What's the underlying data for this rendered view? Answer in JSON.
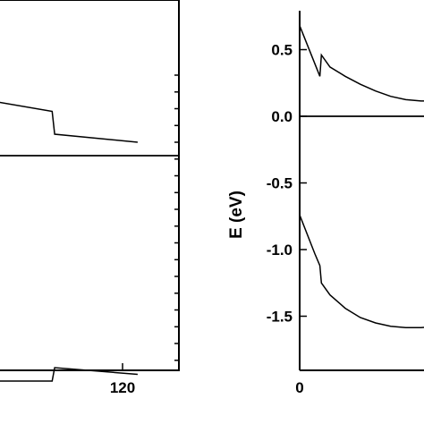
{
  "chart_data": [
    {
      "type": "line",
      "panel": "left",
      "title": "",
      "xlabel": "",
      "ylabel": "",
      "x_ticks": [
        {
          "value": 120,
          "label": "120"
        }
      ],
      "y_ticks": [],
      "series": [
        {
          "x": [
            92,
            106,
            106.5,
            123
          ],
          "y": [
            0.42,
            0.33,
            0.16,
            0.1
          ]
        },
        {
          "x": [
            92,
            106,
            106.5,
            123
          ],
          "y": [
            -1.68,
            -1.68,
            -1.58,
            -1.63
          ]
        },
        {
          "x": [
            92,
            123
          ],
          "y": [
            0.0,
            0.0
          ]
        }
      ]
    },
    {
      "type": "line",
      "panel": "right",
      "title": "",
      "xlabel": "",
      "ylabel": "E (eV)",
      "x_ticks": [
        {
          "value": 0,
          "label": "0"
        }
      ],
      "y_ticks": [
        {
          "value": 0.5,
          "label": "0.5"
        },
        {
          "value": 0.0,
          "label": "0.0"
        },
        {
          "value": -0.5,
          "label": "-0.5"
        },
        {
          "value": -1.0,
          "label": "-1.0"
        },
        {
          "value": -1.5,
          "label": "-1.5"
        }
      ],
      "series": [
        {
          "x": [
            0,
            4,
            4.3,
            6,
            9,
            12,
            15,
            18,
            21,
            24,
            27,
            30,
            33,
            36,
            39
          ],
          "y": [
            0.68,
            0.3,
            0.46,
            0.37,
            0.3,
            0.24,
            0.19,
            0.15,
            0.125,
            0.115,
            0.115,
            0.125,
            0.135,
            0.145,
            0.155
          ]
        },
        {
          "x": [
            0,
            3,
            4,
            4.3,
            6,
            9,
            12,
            15,
            18,
            21,
            24,
            27,
            30,
            33,
            36,
            39
          ],
          "y": [
            -0.74,
            -1.03,
            -1.12,
            -1.25,
            -1.34,
            -1.44,
            -1.51,
            -1.55,
            -1.575,
            -1.585,
            -1.585,
            -1.58,
            -1.575,
            -1.57,
            -1.565,
            -1.56
          ]
        },
        {
          "x": [
            0,
            39
          ],
          "y": [
            0.0,
            0.0
          ]
        }
      ]
    }
  ]
}
